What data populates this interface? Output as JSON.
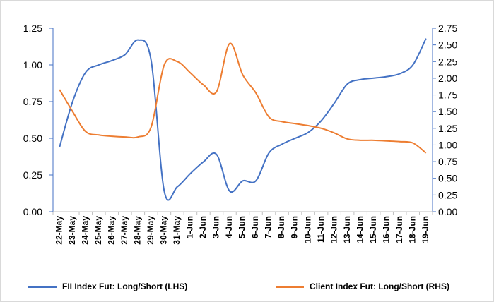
{
  "chart_data": {
    "type": "line",
    "categories": [
      "22-May",
      "23-May",
      "24-May",
      "25-May",
      "26-May",
      "27-May",
      "28-May",
      "29-May",
      "30-May",
      "31-May",
      "1-Jun",
      "2-Jun",
      "3-Jun",
      "4-Jun",
      "5-Jun",
      "6-Jun",
      "7-Jun",
      "8-Jun",
      "9-Jun",
      "10-Jun",
      "11-Jun",
      "12-Jun",
      "13-Jun",
      "14-Jun",
      "15-Jun",
      "16-Jun",
      "17-Jun",
      "18-Jun",
      "19-Jun"
    ],
    "series": [
      {
        "name": "FII Index Fut: Long/Short (LHS)",
        "color": "#4472c4",
        "values": [
          0.44,
          0.75,
          0.95,
          1.0,
          1.03,
          1.07,
          1.17,
          1.03,
          0.14,
          0.17,
          0.26,
          0.34,
          0.39,
          0.14,
          0.21,
          0.21,
          0.4,
          0.46,
          0.5,
          0.54,
          0.62,
          0.74,
          0.87,
          0.9,
          0.91,
          0.92,
          0.94,
          1.0,
          1.18
        ]
      },
      {
        "name": "Client Index Fut: Long/Short (RHS)",
        "color": "#ed7d31",
        "axis": "y2",
        "values": [
          1.83,
          1.5,
          1.2,
          1.15,
          1.13,
          1.12,
          1.12,
          1.27,
          2.2,
          2.25,
          2.08,
          1.9,
          1.8,
          2.52,
          2.05,
          1.78,
          1.42,
          1.35,
          1.32,
          1.29,
          1.25,
          1.18,
          1.09,
          1.07,
          1.07,
          1.06,
          1.05,
          1.03,
          0.88
        ]
      }
    ],
    "ylim": [
      0,
      1.25
    ],
    "yticks": [
      {
        "value": 0,
        "label": "0.00"
      },
      0.25,
      {
        "value": 0.5,
        "label": "0.50"
      },
      0.75,
      {
        "value": 1,
        "label": "1.00"
      },
      1.25
    ],
    "y2lim": [
      0,
      2.75
    ],
    "y2ticks": [
      {
        "value": 0,
        "label": "0.00"
      },
      0.25,
      {
        "value": 0.5,
        "label": "0.50"
      },
      0.75,
      {
        "value": 1,
        "label": "1.00"
      },
      1.25,
      {
        "value": 1.5,
        "label": "1.50"
      },
      1.75,
      {
        "value": 2,
        "label": "2.00"
      },
      2.25,
      {
        "value": 2.5,
        "label": "2.50"
      },
      2.75
    ]
  }
}
